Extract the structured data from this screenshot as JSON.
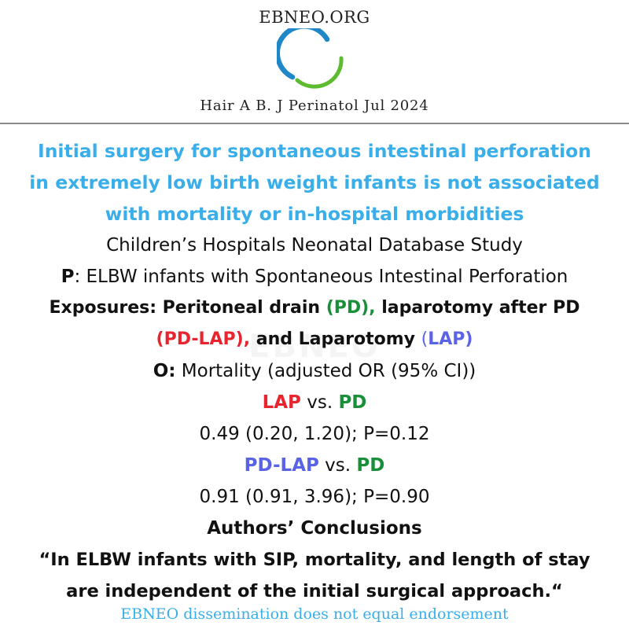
{
  "header": {
    "brand": "EBNEO.ORG",
    "logo_icon": "ebneo-ring-logo",
    "citation": "Hair A B. J Perinatol Jul 2024"
  },
  "colors": {
    "title_blue": "#3aaee8",
    "pd_green": "#1a8f3a",
    "lap_red": "#e8252f",
    "pdlap_blue": "#5a62e6"
  },
  "watermark": "EBNEO",
  "title_lines": [
    "Initial surgery for spontaneous intestinal perforation",
    "in extremely low birth weight infants is not associated",
    "with mortality or in-hospital morbidities"
  ],
  "study": "Children’s Hospitals Neonatal Database Study",
  "population": {
    "label": "P",
    "text": ": ELBW infants with Spontaneous Intestinal Perforation"
  },
  "exposures": {
    "label": "Exposures:  Peritoneal drain ",
    "pd_abbrev": "(PD),",
    "lap_after": " laparotomy after PD",
    "pdlap_abbrev": "(PD-LAP),",
    "and_lap": " and Laparotomy ",
    "lap_open": "(",
    "lap_abbrev": "LAP",
    "lap_close": ")"
  },
  "outcome": {
    "label": "O:",
    "text": "  Mortality (adjusted OR (95% CI))"
  },
  "comparisons": [
    {
      "group": "LAP",
      "vs": " vs. ",
      "ref": "PD",
      "result": "0.49 (0.20, 1.20); P=0.12"
    },
    {
      "group": "PD-LAP",
      "vs": " vs. ",
      "ref": "PD",
      "result": "0.91 (0.91, 3.96); P=0.90"
    }
  ],
  "conclusions": {
    "heading": "Authors’ Conclusions",
    "quote_line1": "“In ELBW infants with SIP, mortality, and length of stay",
    "quote_line2": "are independent of the initial surgical approach.“"
  },
  "footer": "EBNEO dissemination does not equal endorsement"
}
